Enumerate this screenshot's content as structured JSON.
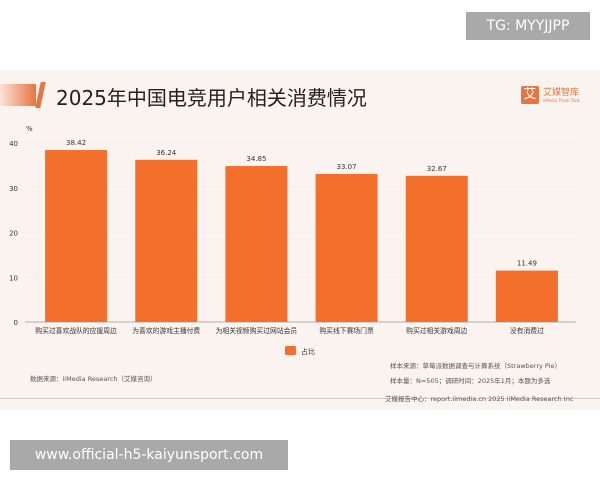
{
  "watermark_top": "TG: MYYJJPP",
  "watermark_bottom": "www.official-h5-kaiyunsport.com",
  "logo": {
    "mark": "艾",
    "name": "艾媒智库",
    "sub": "iiMedia Think Tank"
  },
  "colors": {
    "bar": "#f36f2c",
    "accent": "#e8743f"
  },
  "chart_data": {
    "type": "bar",
    "title": "2025年中国电竞用户相关消费情况",
    "ylabel": "%",
    "ylim": [
      0,
      40
    ],
    "yticks": [
      0,
      10,
      20,
      30,
      40
    ],
    "categories": [
      "购买过喜欢战队的应援周边",
      "为喜欢的游戏主播付费",
      "为相关视频购买过网站会员",
      "购买线下赛场门票",
      "购买过相关游戏周边",
      "没有消费过"
    ],
    "series": [
      {
        "name": "占比",
        "values": [
          38.42,
          36.24,
          34.85,
          33.07,
          32.67,
          11.49
        ]
      }
    ],
    "legend": "bottom-center",
    "grid": true
  },
  "notes": {
    "data_source": "数据来源：iiMedia Research（艾媒咨询）",
    "sample_source": "样本来源：草莓派数据调查与计算系统（Strawberry Pie）",
    "sample_size": "样本量：N=505；调研时间：2025年1月；本题为多选",
    "footer": "艾媒报告中心：report.iimedia.cn   2025 iiMedia Research Inc"
  }
}
